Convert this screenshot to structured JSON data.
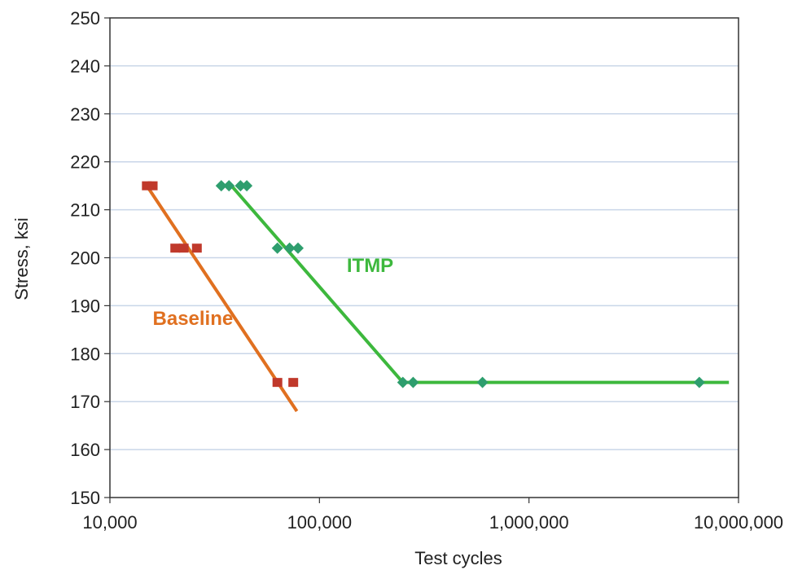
{
  "chart_data": {
    "type": "scatter",
    "title": "",
    "xlabel": "Test cycles",
    "ylabel": "Stress, ksi",
    "x_scale": "log",
    "xlim": [
      10000,
      10000000
    ],
    "ylim": [
      150,
      250
    ],
    "x_ticks": [
      10000,
      100000,
      1000000,
      10000000
    ],
    "x_tick_labels": [
      "10,000",
      "100,000",
      "1,000,000",
      "10,000,000"
    ],
    "y_ticks": [
      150,
      160,
      170,
      180,
      190,
      200,
      210,
      220,
      230,
      240,
      250
    ],
    "y_tick_labels": [
      "150",
      "160",
      "170",
      "180",
      "190",
      "200",
      "210",
      "220",
      "230",
      "240",
      "250"
    ],
    "grid": "horizontal",
    "legend": "none",
    "series": [
      {
        "name": "Baseline",
        "label_color": "#e07020",
        "line_color": "#e07020",
        "marker": "square",
        "marker_color": "#c0392b",
        "points": [
          {
            "x": 15000,
            "y": 215
          },
          {
            "x": 16000,
            "y": 215
          },
          {
            "x": 20500,
            "y": 202
          },
          {
            "x": 22500,
            "y": 202
          },
          {
            "x": 26000,
            "y": 202
          },
          {
            "x": 63000,
            "y": 174
          },
          {
            "x": 75000,
            "y": 174
          }
        ],
        "fit_line": [
          {
            "x": 15000,
            "y": 215
          },
          {
            "x": 78000,
            "y": 168
          }
        ]
      },
      {
        "name": "ITMP",
        "label_color": "#3db83d",
        "line_color": "#3db83d",
        "marker": "diamond",
        "marker_color": "#2e9e6e",
        "points": [
          {
            "x": 34000,
            "y": 215
          },
          {
            "x": 37000,
            "y": 215
          },
          {
            "x": 42000,
            "y": 215
          },
          {
            "x": 45000,
            "y": 215
          },
          {
            "x": 63000,
            "y": 202
          },
          {
            "x": 72000,
            "y": 202
          },
          {
            "x": 79000,
            "y": 202
          },
          {
            "x": 250000,
            "y": 174
          },
          {
            "x": 280000,
            "y": 174
          },
          {
            "x": 600000,
            "y": 174
          },
          {
            "x": 6500000,
            "y": 174
          }
        ],
        "fit_line": [
          {
            "x": 38000,
            "y": 215
          },
          {
            "x": 250000,
            "y": 174
          },
          {
            "x": 9000000,
            "y": 174
          }
        ]
      }
    ],
    "annotations": [
      {
        "text": "Baseline",
        "series": "Baseline",
        "x": 16000,
        "y": 186
      },
      {
        "text": "ITMP",
        "series": "ITMP",
        "x": 135000,
        "y": 197
      }
    ]
  }
}
